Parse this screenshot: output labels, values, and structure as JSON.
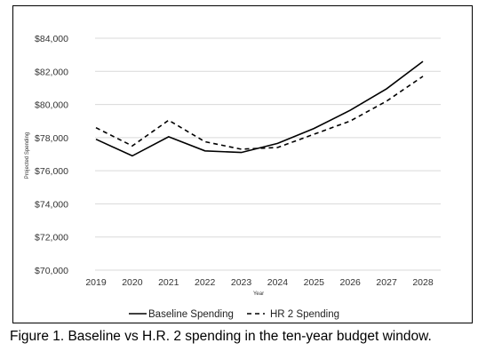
{
  "caption": "Figure 1. Baseline vs H.R. 2 spending in the ten-year budget window.",
  "chart_data": {
    "type": "line",
    "title": "",
    "xlabel": "Year",
    "ylabel": "Projected Spending",
    "x": [
      "2019",
      "2020",
      "2021",
      "2022",
      "2023",
      "2024",
      "2025",
      "2026",
      "2027",
      "2028"
    ],
    "ylim": [
      70000,
      84000
    ],
    "y_ticks": [
      70000,
      72000,
      74000,
      76000,
      78000,
      80000,
      82000,
      84000
    ],
    "y_tick_labels": [
      "$70,000",
      "$72,000",
      "$74,000",
      "$76,000",
      "$78,000",
      "$80,000",
      "$82,000",
      "$84,000"
    ],
    "grid": true,
    "legend_position": "bottom",
    "series": [
      {
        "name": "Baseline Spending",
        "style": "solid",
        "color": "#000000",
        "values": [
          77900,
          76900,
          78050,
          77200,
          77100,
          77650,
          78550,
          79650,
          80950,
          82600
        ]
      },
      {
        "name": "HR 2 Spending",
        "style": "dashed",
        "color": "#000000",
        "values": [
          78600,
          77500,
          79050,
          77750,
          77300,
          77400,
          78200,
          79000,
          80200,
          81700
        ]
      }
    ]
  }
}
